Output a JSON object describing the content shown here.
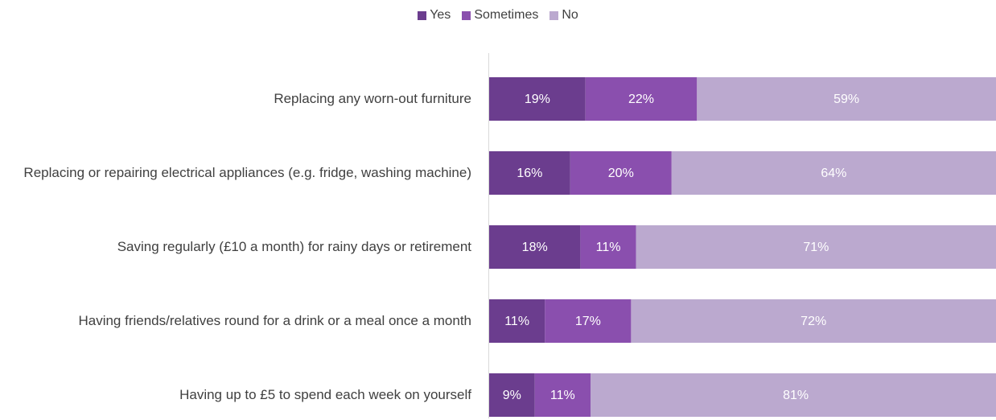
{
  "chart_data": {
    "type": "stacked-bar-horizontal",
    "categories": [
      "Replacing any worn-out furniture",
      "Replacing or repairing electrical appliances (e.g. fridge, washing machine)",
      "Saving regularly (£10 a month) for rainy days or retirement",
      "Having friends/relatives round for a drink or a meal once a month",
      "Having up to £5 to spend each week on yourself"
    ],
    "series": [
      {
        "name": "Yes",
        "color": "#6b3d8e",
        "values": [
          19,
          16,
          18,
          11,
          9
        ],
        "value_labels": [
          "19%",
          "16%",
          "18%",
          "11%",
          "9%"
        ]
      },
      {
        "name": "Sometimes",
        "color": "#8a4fae",
        "values": [
          22,
          20,
          11,
          17,
          11
        ],
        "value_labels": [
          "22%",
          "20%",
          "11%",
          "17%",
          "11%"
        ]
      },
      {
        "name": "No",
        "color": "#bba9cf",
        "values": [
          59,
          64,
          71,
          72,
          81
        ],
        "value_labels": [
          "59%",
          "64%",
          "71%",
          "72%",
          "81%"
        ]
      }
    ],
    "xlim": [
      0,
      100
    ],
    "legend": "top"
  }
}
